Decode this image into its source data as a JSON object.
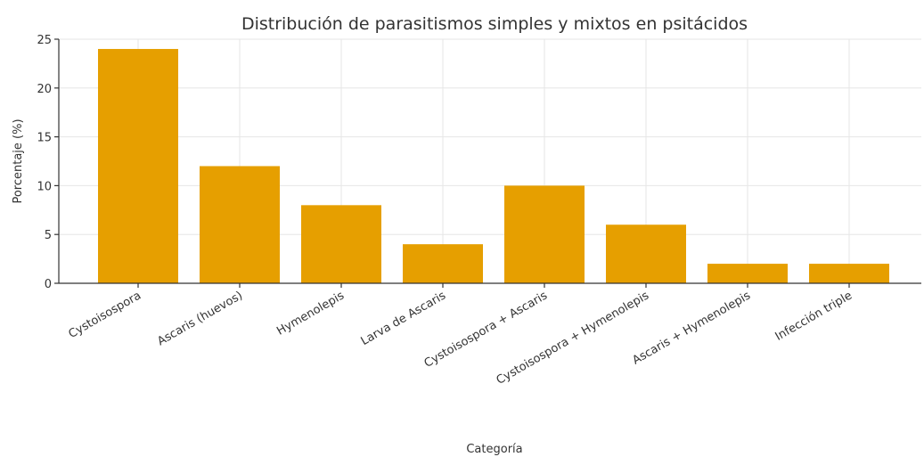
{
  "chart_data": {
    "type": "bar",
    "title": "Distribución de parasitismos simples y mixtos en psitácidos",
    "xlabel": "Categoría",
    "ylabel": "Porcentaje (%)",
    "categories": [
      "Cystoisospora",
      "Ascaris (huevos)",
      "Hymenolepis",
      "Larva de Ascaris",
      "Cystoisospora + Ascaris",
      "Cystoisospora + Hymenolepis",
      "Ascaris + Hymenolepis",
      "Infección triple"
    ],
    "values": [
      24,
      12,
      8,
      4,
      10,
      6,
      2,
      2
    ],
    "ylim": [
      0,
      25
    ],
    "yticks": [
      0,
      5,
      10,
      15,
      20,
      25
    ],
    "grid": true,
    "bar_color": "#E69F00"
  }
}
